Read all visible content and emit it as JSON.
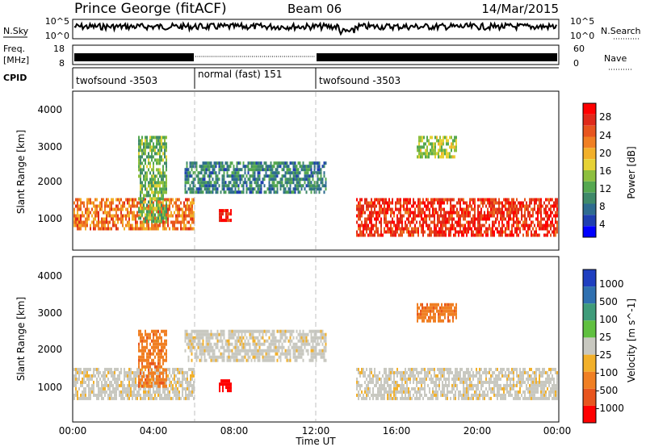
{
  "header": {
    "station": "Prince George (fitACF)",
    "beam": "Beam 06",
    "date": "14/Mar/2015"
  },
  "strips": {
    "nsky_label": "N.Sky",
    "nsky_ticks": [
      "10^5",
      "10^0"
    ],
    "nsearch_label": "N.Search",
    "nsearch_ticks": [
      "10^5",
      "10^0"
    ],
    "freq_label": "Freq.",
    "freq_unit": "[MHz]",
    "freq_ticks": [
      "18",
      "8"
    ],
    "nave_label": "Nave",
    "nave_ticks": [
      "60",
      "0"
    ],
    "cpid_label": "CPID",
    "cpid_segments": [
      {
        "name": "twofsound -3503",
        "start_hr": 0,
        "end_hr": 6
      },
      {
        "name": "normal (fast) 151",
        "start_hr": 6,
        "end_hr": 12
      },
      {
        "name": "twofsound -3503",
        "start_hr": 12,
        "end_hr": 24
      }
    ]
  },
  "chart_data": [
    {
      "type": "heatmap",
      "title": "",
      "xlabel": "Time UT",
      "ylabel": "Slant Range [km]",
      "x_ticks": [
        "00:00",
        "04:00",
        "08:00",
        "12:00",
        "16:00",
        "20:00",
        "00:00"
      ],
      "xlim_hours": [
        0,
        24
      ],
      "y_ticks": [
        "1000",
        "2000",
        "3000",
        "4000"
      ],
      "ylim_km": [
        200,
        4500
      ],
      "colorbar": {
        "label": "Power [dB]",
        "range": [
          0,
          30
        ],
        "ticks": [
          "28",
          "24",
          "20",
          "16",
          "12",
          "8",
          "4"
        ],
        "colors": [
          "#0000ff",
          "#1f3fb0",
          "#2e6c90",
          "#3f8a6a",
          "#55a850",
          "#8dbf3e",
          "#e6d234",
          "#f2b02a",
          "#f07f23",
          "#e8551e",
          "#e02a1a",
          "#ff0000"
        ]
      },
      "regions": [
        {
          "start_hr": 0,
          "end_hr": 6,
          "min_km": 800,
          "max_km": 1600,
          "level": 22
        },
        {
          "start_hr": 3.2,
          "end_hr": 4.6,
          "min_km": 1000,
          "max_km": 3300,
          "level": 12
        },
        {
          "start_hr": 5.5,
          "end_hr": 12.5,
          "min_km": 1800,
          "max_km": 2600,
          "level": 8
        },
        {
          "start_hr": 7.2,
          "end_hr": 7.8,
          "min_km": 1000,
          "max_km": 1300,
          "level": 28
        },
        {
          "start_hr": 14,
          "end_hr": 24,
          "min_km": 600,
          "max_km": 1600,
          "level": 26
        },
        {
          "start_hr": 17,
          "end_hr": 19,
          "min_km": 2700,
          "max_km": 3300,
          "level": 14
        }
      ]
    },
    {
      "type": "heatmap",
      "title": "",
      "xlabel": "Time UT",
      "ylabel": "Slant Range [km]",
      "x_ticks": [
        "00:00",
        "04:00",
        "08:00",
        "12:00",
        "16:00",
        "20:00",
        "00:00"
      ],
      "xlim_hours": [
        0,
        24
      ],
      "y_ticks": [
        "1000",
        "2000",
        "3000",
        "4000"
      ],
      "ylim_km": [
        200,
        4500
      ],
      "colorbar": {
        "label": "Velocity [m s^-1]",
        "ticks": [
          "1000",
          "500",
          "100",
          "25",
          "-25",
          "-100",
          "-500",
          "-1000"
        ],
        "colors": [
          "#1f3fc0",
          "#2f70b0",
          "#3f9c7a",
          "#60c040",
          "#c8c8c0",
          "#f2b02a",
          "#f07f23",
          "#e8551e",
          "#ff0000"
        ]
      },
      "regions": [
        {
          "start_hr": 0,
          "end_hr": 6,
          "min_km": 800,
          "max_km": 1600,
          "level": "25"
        },
        {
          "start_hr": 3.2,
          "end_hr": 4.6,
          "min_km": 1100,
          "max_km": 2600,
          "level": "-500"
        },
        {
          "start_hr": 5.5,
          "end_hr": 12.5,
          "min_km": 1800,
          "max_km": 2600,
          "level": "25"
        },
        {
          "start_hr": 7.2,
          "end_hr": 7.8,
          "min_km": 1000,
          "max_km": 1300,
          "level": "-1000"
        },
        {
          "start_hr": 14,
          "end_hr": 24,
          "min_km": 800,
          "max_km": 1600,
          "level": "25"
        },
        {
          "start_hr": 17,
          "end_hr": 19,
          "min_km": 2800,
          "max_km": 3300,
          "level": "-500"
        }
      ]
    }
  ]
}
